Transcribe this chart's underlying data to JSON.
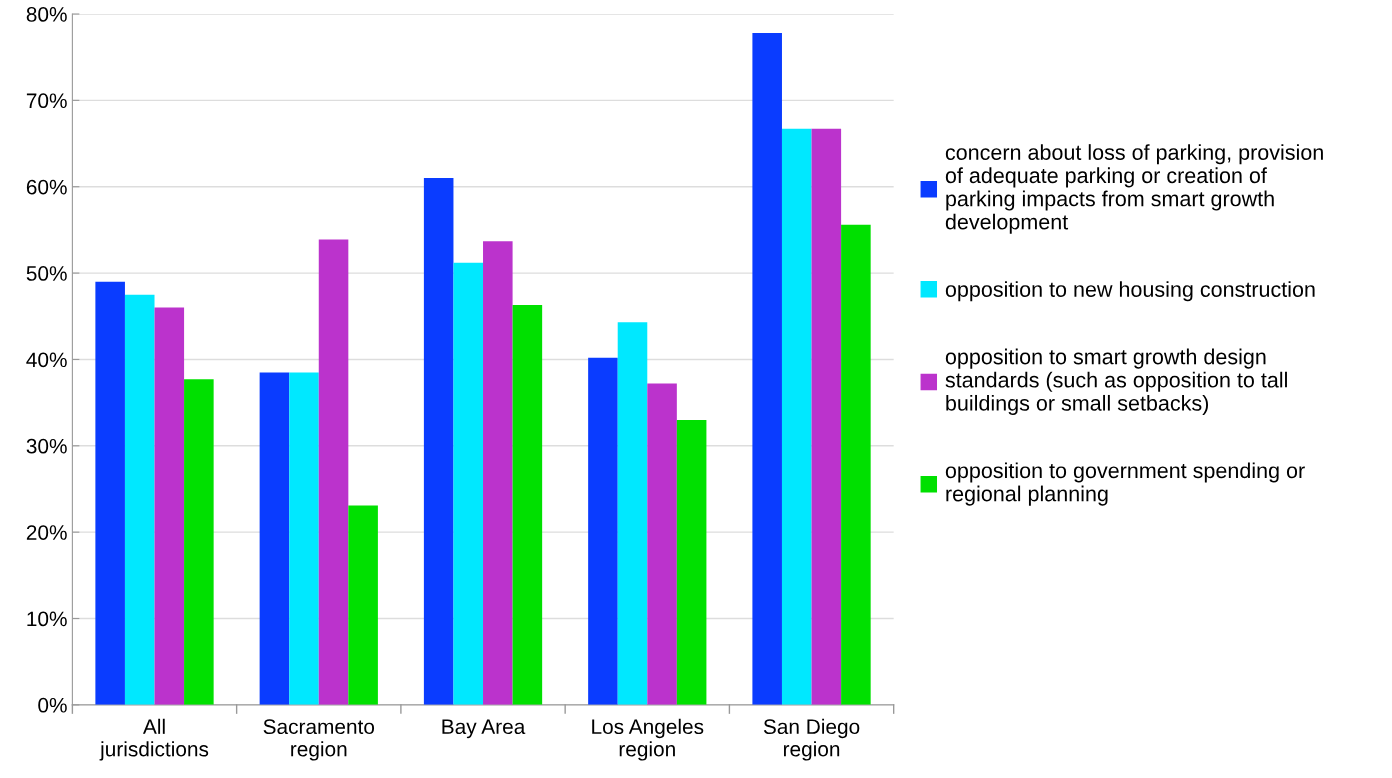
{
  "chart_data": {
    "type": "bar",
    "categories": [
      "All jurisdictions",
      "Sacramento region",
      "Bay Area",
      "Los Angeles region",
      "San Diego region"
    ],
    "series": [
      {
        "name": "concern about loss of parking, provision of adequate parking or creation of parking impacts from smart growth development",
        "color": "#0a3cff",
        "values": [
          49.0,
          38.5,
          61.0,
          40.2,
          77.8
        ]
      },
      {
        "name": "opposition to new housing construction",
        "color": "#00e8ff",
        "values": [
          47.5,
          38.5,
          51.2,
          44.3,
          66.7
        ]
      },
      {
        "name": "opposition to smart growth design standards (such as opposition to tall buildings or small setbacks)",
        "color": "#bb33cc",
        "values": [
          46.0,
          53.9,
          53.7,
          37.2,
          66.7
        ]
      },
      {
        "name": "opposition to government spending or regional planning",
        "color": "#00e000",
        "values": [
          37.7,
          23.1,
          46.3,
          33.0,
          55.6
        ]
      }
    ],
    "ylim": [
      0,
      80
    ],
    "yticks": [
      {
        "value": 0,
        "label": "0%"
      },
      {
        "value": 10,
        "label": "10%"
      },
      {
        "value": 20,
        "label": "20%"
      },
      {
        "value": 30,
        "label": "30%"
      },
      {
        "value": 40,
        "label": "40%"
      },
      {
        "value": 50,
        "label": "50%"
      },
      {
        "value": 60,
        "label": "60%"
      },
      {
        "value": 70,
        "label": "70%"
      },
      {
        "value": 80,
        "label": "80%"
      }
    ],
    "grid": "y",
    "legend": "right"
  }
}
